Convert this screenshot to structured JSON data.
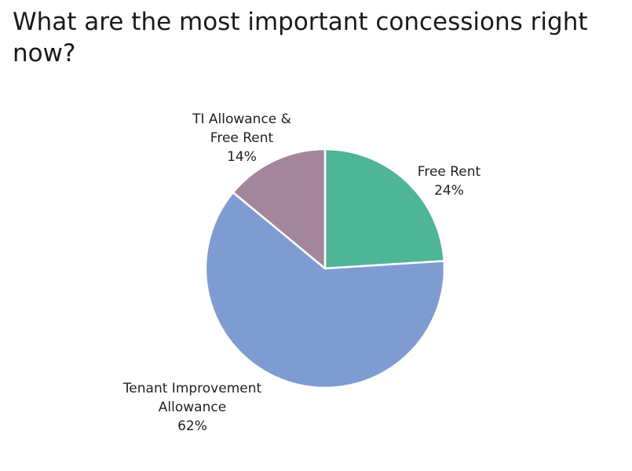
{
  "chart_data": {
    "type": "pie",
    "title": "What are the most important concessions right now?",
    "slices": [
      {
        "name_lines": [
          "Free Rent"
        ],
        "value": 24,
        "value_label": "24%",
        "color": "#4fb597"
      },
      {
        "name_lines": [
          "Tenant Improvement",
          "Allowance"
        ],
        "value": 62,
        "value_label": "62%",
        "color": "#7e9cd2"
      },
      {
        "name_lines": [
          "TI Allowance &",
          "Free Rent"
        ],
        "value": 14,
        "value_label": "14%",
        "color": "#a3869c"
      }
    ],
    "start_angle": "12 o'clock",
    "direction": "clockwise",
    "legend": "none"
  }
}
